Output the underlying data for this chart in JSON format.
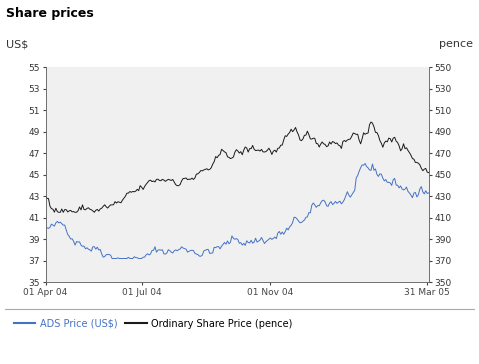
{
  "title": "Share prices",
  "subtitle_left": "US$",
  "subtitle_right": "pence",
  "left_ylim": [
    35,
    55
  ],
  "right_ylim": [
    350,
    550
  ],
  "left_yticks": [
    35,
    37,
    39,
    41,
    43,
    45,
    47,
    49,
    51,
    53,
    55
  ],
  "right_yticks": [
    350,
    370,
    390,
    410,
    430,
    450,
    470,
    490,
    510,
    530,
    550
  ],
  "xtick_labels": [
    "01 Apr 04",
    "01 Jul 04",
    "01 Nov 04",
    "31 Mar 05"
  ],
  "legend_ads_label": "ADS Price (US$)",
  "legend_ads_color": "#4472C4",
  "legend_ord_label": "Ordinary Share Price (pence)",
  "legend_ord_color": "#1a1a1a",
  "header_bg": "#d4d4d4",
  "chart_bg": "#f0f0f0",
  "body_bg": "#ffffff"
}
